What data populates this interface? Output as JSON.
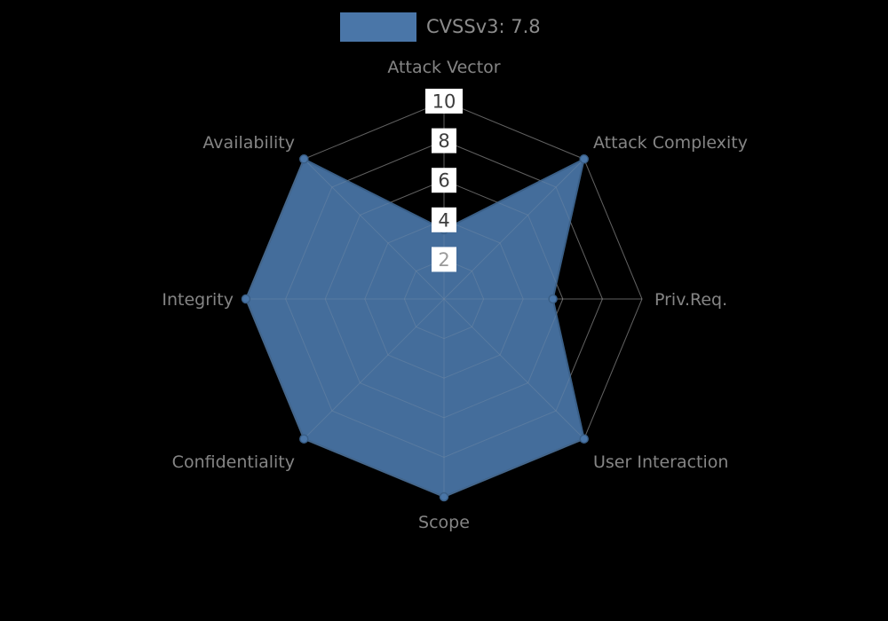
{
  "legend": {
    "label": "CVSSv3: 7.8"
  },
  "chart_data": {
    "type": "radar",
    "title": "CVSSv3: 7.8",
    "categories": [
      "Attack Vector",
      "Attack Complexity",
      "Priv.Req.",
      "User Interaction",
      "Scope",
      "Confidentiality",
      "Integrity",
      "Availability"
    ],
    "series": [
      {
        "name": "CVSSv3: 7.8",
        "values": [
          3.5,
          10,
          5.5,
          10,
          10,
          10,
          10,
          10
        ]
      }
    ],
    "scale": {
      "min": 0,
      "max": 10,
      "ticks": [
        2,
        4,
        6,
        8,
        10
      ]
    },
    "grid": true,
    "legend_position": "top",
    "colors": {
      "series_fill": "#4a76a8",
      "series_stroke": "#3a5f87",
      "grid": "#9a9a9a",
      "tick_text": "#3c3c3c",
      "tick_text_low": "#9a9a9a",
      "tick_box": "#ffffff",
      "label": "#858585",
      "legend_text": "#8c8c8c",
      "background": "#000000"
    }
  }
}
